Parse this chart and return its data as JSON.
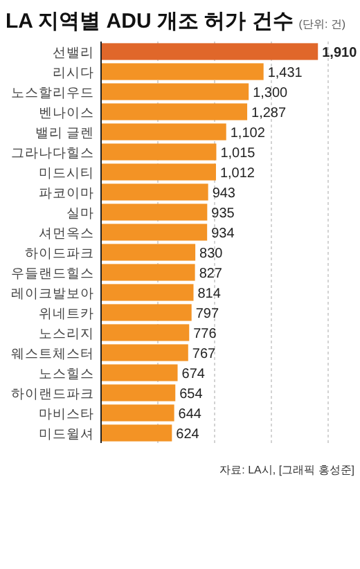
{
  "chart_data": {
    "type": "bar",
    "orientation": "horizontal",
    "title": "LA 지역별 ADU 개조 허가 건수",
    "subtitle": "(단위: 건)",
    "categories": [
      "선밸리",
      "리시다",
      "노스할리우드",
      "벤나이스",
      "밸리 글렌",
      "그라나다힐스",
      "미드시티",
      "파코이마",
      "실마",
      "셔먼옥스",
      "하이드파크",
      "우들랜드힐스",
      "레이크발보아",
      "위네트카",
      "노스리지",
      "웨스트체스터",
      "노스힐스",
      "하이랜드파크",
      "마비스타",
      "미드윌셔"
    ],
    "values": [
      1910,
      1431,
      1300,
      1287,
      1102,
      1015,
      1012,
      943,
      935,
      934,
      830,
      827,
      814,
      797,
      776,
      767,
      674,
      654,
      644,
      624
    ],
    "colors": [
      "#e0672a",
      "#f39325",
      "#f39325",
      "#f39325",
      "#f39325",
      "#f39325",
      "#f39325",
      "#f39325",
      "#f39325",
      "#f39325",
      "#f39325",
      "#f39325",
      "#f39325",
      "#f39325",
      "#f39325",
      "#f39325",
      "#f39325",
      "#f39325",
      "#f39325",
      "#f39325"
    ],
    "value_labels": [
      "1,910",
      "1,431",
      "1,300",
      "1,287",
      "1,102",
      "1,015",
      "1,012",
      "943",
      "935",
      "934",
      "830",
      "827",
      "814",
      "797",
      "776",
      "767",
      "674",
      "654",
      "644",
      "624"
    ],
    "xlim": [
      0,
      2000
    ],
    "xticks": [
      {
        "value": 500,
        "label": null
      },
      {
        "value": 1000,
        "label": null
      },
      {
        "value": 1500,
        "label": null
      },
      {
        "value": 2000,
        "label": null
      }
    ],
    "grid": "x",
    "tick_labels": "y",
    "annotations": [
      "자료: LA시, [그래픽 홍성준]"
    ]
  }
}
